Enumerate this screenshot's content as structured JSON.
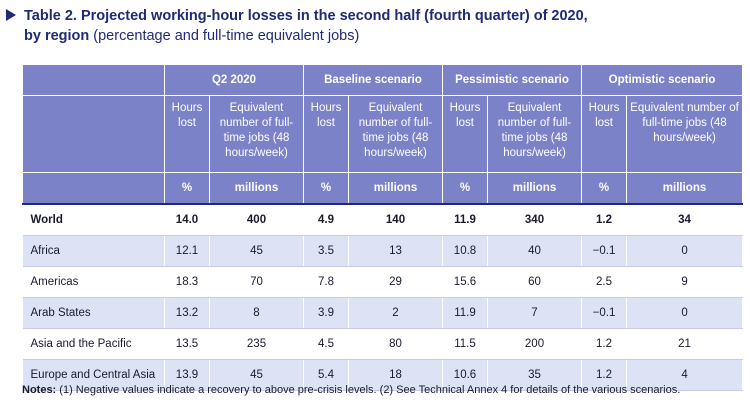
{
  "title": {
    "bold_line1": "Table 2.  Projected working-hour losses in the second half (fourth quarter) of 2020,",
    "bold_line2": "by region",
    "light_line2": " (percentage and full-time equivalent jobs)"
  },
  "header": {
    "groups": [
      "Q2 2020",
      "Baseline scenario",
      "Pessimistic scenario",
      "Optimistic scenario"
    ],
    "sub_hours": "Hours lost",
    "sub_equiv": "Equivalent number of full-time jobs (48 hours/week)",
    "unit_pct": "%",
    "unit_millions": "millions"
  },
  "rows": [
    {
      "label": "World",
      "values": [
        "14.0",
        "400",
        "4.9",
        "140",
        "11.9",
        "340",
        "1.2",
        "34"
      ]
    },
    {
      "label": "Africa",
      "values": [
        "12.1",
        "45",
        "3.5",
        "13",
        "10.8",
        "40",
        "−0.1",
        "0"
      ]
    },
    {
      "label": "Americas",
      "values": [
        "18.3",
        "70",
        "7.8",
        "29",
        "15.6",
        "60",
        "2.5",
        "9"
      ]
    },
    {
      "label": "Arab States",
      "values": [
        "13.2",
        "8",
        "3.9",
        "2",
        "11.9",
        "7",
        "−0.1",
        "0"
      ]
    },
    {
      "label": "Asia and the Pacific",
      "values": [
        "13.5",
        "235",
        "4.5",
        "80",
        "11.5",
        "200",
        "1.2",
        "21"
      ]
    },
    {
      "label": "Europe and Central Asia",
      "values": [
        "13.9",
        "45",
        "5.4",
        "18",
        "10.6",
        "35",
        "1.2",
        "4"
      ]
    }
  ],
  "notes": {
    "label": "Notes:",
    "text": " (1) Negative values indicate a recovery to above pre-crisis levels.  (2) See Technical Annex 4 for details of the various scenarios."
  }
}
